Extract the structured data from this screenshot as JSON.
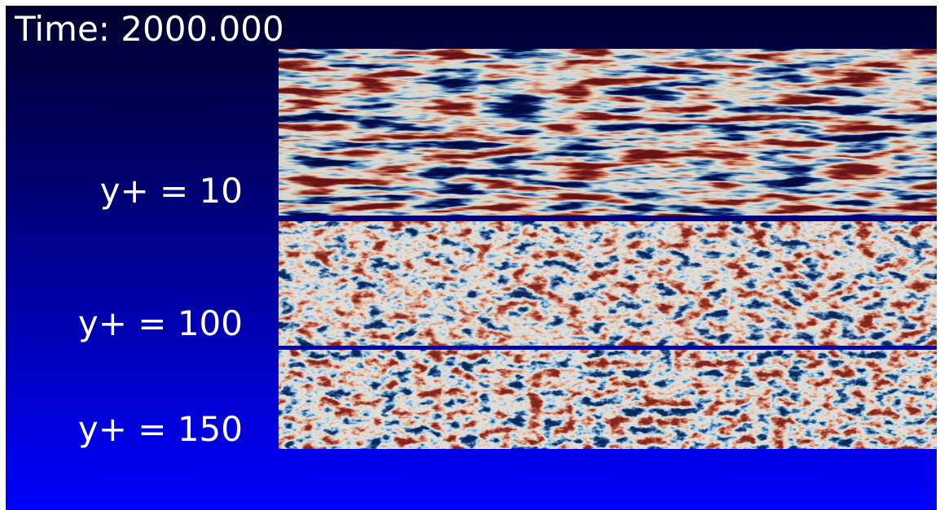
{
  "time_label": "Time: 2000.000",
  "slices": [
    {
      "label": "y+ = 10"
    },
    {
      "label": "y+ = 100"
    },
    {
      "label": "y+ = 150"
    }
  ]
}
